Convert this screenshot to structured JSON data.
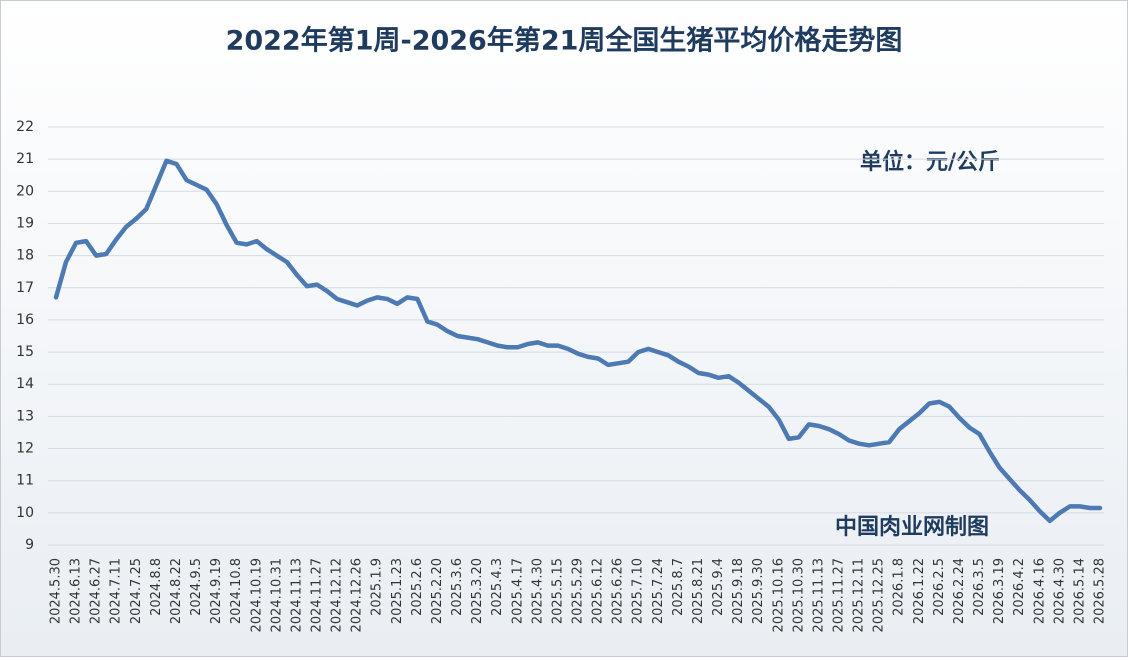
{
  "chart_data": {
    "type": "line",
    "title": "2022年第1周-2026年第21周全国生猪平均价格走势图",
    "annotations": [
      "单位：元/公斤",
      "中国肉业网制图"
    ],
    "categories": [
      "2024.5.30",
      null,
      "2024.6.13",
      null,
      "2024.6.27",
      null,
      "2024.7.11",
      null,
      "2024.7.25",
      null,
      "2024.8.8",
      null,
      "2024.8.22",
      null,
      "2024.9.5",
      null,
      "2024.9.19",
      null,
      "2024.10.8",
      null,
      "2024.10.19",
      null,
      "2024.10.31",
      null,
      "2024.11.13",
      null,
      "2024.11.27",
      null,
      "2024.12.12",
      null,
      "2024.12.26",
      null,
      "2025.1.9",
      null,
      "2025.1.23",
      null,
      "2025.2.6",
      null,
      "2025.2.20",
      null,
      "2025.3.6",
      null,
      "2025.3.20",
      null,
      "2025.4.3",
      null,
      "2025.4.17",
      null,
      "2025.4.30",
      null,
      "2025.5.15",
      null,
      "2025.5.29",
      null,
      "2025.6.12",
      null,
      "2025.6.26",
      null,
      "2025.7.10",
      null,
      "2025.7.24",
      null,
      "2025.8.7",
      null,
      "2025.8.21",
      null,
      "2025.9.4",
      null,
      "2025.9.18",
      null,
      "2025.9.30",
      null,
      "2025.10.16",
      null,
      "2025.10.30",
      null,
      "2025.11.13",
      null,
      "2025.11.27",
      null,
      "2025.12.11",
      null,
      "2025.12.25",
      null,
      "2026.1.8",
      null,
      "2026.1.22",
      null,
      "2026.2.5",
      null,
      "2026.2.24",
      null,
      "2026.3.5",
      null,
      "2026.3.19",
      null,
      "2026.4.2",
      null,
      "2026.4.16",
      null,
      "2026.4.30",
      null,
      "2026.5.14",
      null,
      "2026.5.28"
    ],
    "series": [
      {
        "name": "全国生猪平均价格",
        "color": "#4d7ab3",
        "values": [
          16.7,
          17.8,
          18.4,
          18.45,
          18.0,
          18.05,
          18.5,
          18.9,
          19.15,
          19.45,
          20.2,
          20.95,
          20.85,
          20.35,
          20.2,
          20.05,
          19.6,
          18.95,
          18.4,
          18.35,
          18.45,
          18.2,
          18.0,
          17.8,
          17.4,
          17.05,
          17.1,
          16.9,
          16.65,
          16.55,
          16.45,
          16.6,
          16.7,
          16.65,
          16.5,
          16.7,
          16.65,
          15.95,
          15.85,
          15.65,
          15.5,
          15.45,
          15.4,
          15.3,
          15.2,
          15.15,
          15.15,
          15.25,
          15.3,
          15.2,
          15.2,
          15.1,
          14.95,
          14.85,
          14.8,
          14.6,
          14.65,
          14.7,
          15.0,
          15.1,
          15.0,
          14.9,
          14.7,
          14.55,
          14.35,
          14.3,
          14.2,
          14.25,
          14.05,
          13.8,
          13.55,
          13.3,
          12.9,
          12.3,
          12.35,
          12.75,
          12.7,
          12.6,
          12.45,
          12.25,
          12.15,
          12.1,
          12.15,
          12.2,
          12.6,
          12.85,
          13.1,
          13.4,
          13.45,
          13.3,
          12.95,
          12.65,
          12.45,
          11.9,
          11.4,
          11.05,
          10.7,
          10.4,
          10.05,
          9.75,
          10.0,
          10.2,
          10.2,
          10.15,
          10.15
        ]
      }
    ],
    "ylim": [
      9,
      22
    ],
    "yticks": [
      9,
      10,
      11,
      12,
      13,
      14,
      15,
      16,
      17,
      18,
      19,
      20,
      21,
      22
    ],
    "grid": true
  }
}
